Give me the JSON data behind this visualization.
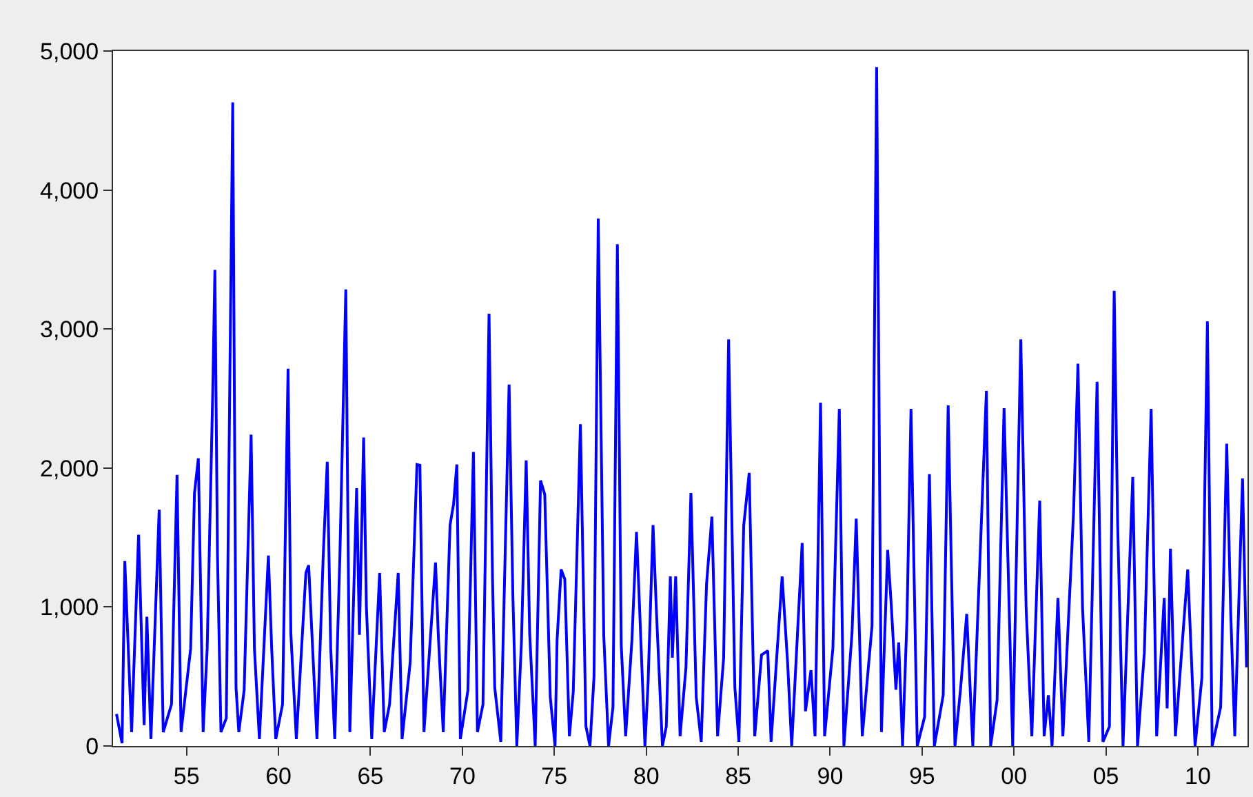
{
  "chart_data": {
    "type": "line",
    "xlim": [
      1951,
      2012.7
    ],
    "ylim": [
      0,
      5000
    ],
    "xticks": [
      {
        "value": 1955,
        "label": "55"
      },
      {
        "value": 1960,
        "label": "60"
      },
      {
        "value": 1965,
        "label": "65"
      },
      {
        "value": 1970,
        "label": "70"
      },
      {
        "value": 1975,
        "label": "75"
      },
      {
        "value": 1980,
        "label": "80"
      },
      {
        "value": 1985,
        "label": "85"
      },
      {
        "value": 1990,
        "label": "90"
      },
      {
        "value": 1995,
        "label": "95"
      },
      {
        "value": 2000,
        "label": "00"
      },
      {
        "value": 2005,
        "label": "05"
      },
      {
        "value": 2010,
        "label": "10"
      }
    ],
    "yticks": [
      0,
      {
        "value": 1000,
        "label": "1,000"
      },
      {
        "value": 2000,
        "label": "2,000"
      },
      {
        "value": 3000,
        "label": "3,000"
      },
      {
        "value": 4000,
        "label": "4,000"
      },
      {
        "value": 5000,
        "label": "5,000"
      }
    ],
    "marker": "none",
    "line_style": "solid",
    "series": [
      {
        "color": "#0000ff",
        "x": [
          1951.19,
          1951.49,
          1951.64,
          1952.01,
          1952.39,
          1952.69,
          1952.84,
          1953.06,
          1953.51,
          1953.73,
          1954.18,
          1954.48,
          1954.7,
          1955.22,
          1955.43,
          1955.64,
          1955.9,
          1956.12,
          1956.42,
          1956.54,
          1956.68,
          1956.87,
          1957.16,
          1957.51,
          1957.69,
          1957.84,
          1958.13,
          1958.51,
          1958.69,
          1958.96,
          1959.45,
          1959.63,
          1959.85,
          1960.22,
          1960.52,
          1960.67,
          1960.97,
          1961.49,
          1961.64,
          1962.09,
          1962.43,
          1962.65,
          1962.84,
          1963.06,
          1963.34,
          1963.66,
          1963.88,
          1964.25,
          1964.4,
          1964.63,
          1964.78,
          1965.07,
          1965.5,
          1965.75,
          1966.04,
          1966.51,
          1966.72,
          1967.16,
          1967.53,
          1967.69,
          1967.91,
          1968.54,
          1968.69,
          1968.96,
          1969.33,
          1969.52,
          1969.7,
          1969.89,
          1970.3,
          1970.6,
          1970.82,
          1971.12,
          1971.45,
          1971.64,
          1971.76,
          1972.09,
          1972.54,
          1972.75,
          1972.96,
          1973.21,
          1973.47,
          1973.66,
          1973.96,
          1974.25,
          1974.48,
          1974.78,
          1975.04,
          1975.15,
          1975.37,
          1975.57,
          1975.82,
          1976.03,
          1976.42,
          1976.72,
          1976.94,
          1977.16,
          1977.39,
          1977.69,
          1977.95,
          1978.19,
          1978.43,
          1978.64,
          1978.88,
          1979.22,
          1979.47,
          1979.63,
          1979.93,
          1980.1,
          1980.37,
          1980.56,
          1980.88,
          1981.09,
          1981.31,
          1981.42,
          1981.6,
          1981.84,
          1982.16,
          1982.43,
          1982.72,
          1982.99,
          1983.28,
          1983.57,
          1983.88,
          1984.21,
          1984.48,
          1984.82,
          1985.04,
          1985.3,
          1985.6,
          1985.9,
          1986.27,
          1986.61,
          1986.79,
          1987.39,
          1987.69,
          1987.91,
          1988.48,
          1988.66,
          1988.96,
          1989.18,
          1989.48,
          1989.7,
          1990.15,
          1990.5,
          1990.75,
          1991.19,
          1991.42,
          1991.75,
          1992.28,
          1992.53,
          1992.79,
          1993.13,
          1993.33,
          1993.58,
          1993.73,
          1993.94,
          1994.18,
          1994.4,
          1994.74,
          1995.14,
          1995.4,
          1995.67,
          1996.15,
          1996.42,
          1996.79,
          1997.09,
          1997.43,
          1997.76,
          1998.18,
          1998.5,
          1998.73,
          1999.08,
          1999.46,
          1999.93,
          2000.37,
          2000.66,
          2000.97,
          2001.4,
          2001.64,
          2001.87,
          2002.07,
          2002.39,
          2002.66,
          2003.24,
          2003.48,
          2003.73,
          2004.07,
          2004.52,
          2004.84,
          2005.19,
          2005.45,
          2005.64,
          2005.93,
          2006.46,
          2006.72,
          2007.09,
          2007.46,
          2007.76,
          2008.17,
          2008.33,
          2008.51,
          2008.78,
          2009.45,
          2009.85,
          2010.22,
          2010.52,
          2010.78,
          2011.24,
          2011.57,
          2011.79,
          2012.01,
          2012.43,
          2012.65
        ],
        "values": [
          230,
          20,
          1330,
          100,
          1520,
          150,
          930,
          50,
          1700,
          100,
          300,
          1950,
          100,
          700,
          1820,
          2070,
          100,
          700,
          2530,
          3425,
          1380,
          100,
          200,
          4630,
          420,
          100,
          400,
          2240,
          700,
          50,
          1370,
          700,
          50,
          300,
          2715,
          810,
          50,
          1245,
          1300,
          50,
          1360,
          2045,
          700,
          50,
          1380,
          3285,
          100,
          1855,
          800,
          2220,
          1000,
          50,
          1245,
          100,
          300,
          1245,
          50,
          600,
          2025,
          2020,
          100,
          1320,
          800,
          100,
          1590,
          1740,
          2025,
          50,
          400,
          2115,
          100,
          300,
          3110,
          1200,
          420,
          30,
          2600,
          1060,
          0,
          740,
          2055,
          810,
          0,
          1910,
          1810,
          350,
          0,
          760,
          1270,
          1200,
          70,
          390,
          2315,
          140,
          0,
          500,
          3795,
          795,
          0,
          280,
          3610,
          725,
          70,
          760,
          1540,
          1020,
          0,
          455,
          1590,
          950,
          0,
          140,
          1220,
          635,
          1220,
          70,
          565,
          1820,
          350,
          30,
          1165,
          1650,
          70,
          635,
          2925,
          420,
          30,
          1585,
          1965,
          70,
          655,
          685,
          30,
          1220,
          595,
          0,
          1460,
          250,
          545,
          70,
          2470,
          70,
          700,
          2425,
          0,
          810,
          1635,
          70,
          865,
          4885,
          100,
          1410,
          1005,
          405,
          745,
          0,
          915,
          2425,
          0,
          210,
          1955,
          0,
          365,
          2450,
          0,
          405,
          950,
          0,
          1450,
          2555,
          0,
          330,
          2430,
          0,
          2925,
          990,
          70,
          1765,
          70,
          365,
          0,
          1065,
          70,
          1680,
          2750,
          990,
          30,
          2620,
          30,
          140,
          3275,
          1590,
          0,
          1935,
          0,
          670,
          2425,
          70,
          1065,
          270,
          1420,
          70,
          1270,
          0,
          490,
          3055,
          0,
          280,
          2175,
          950,
          70,
          1925,
          565
        ]
      }
    ]
  }
}
